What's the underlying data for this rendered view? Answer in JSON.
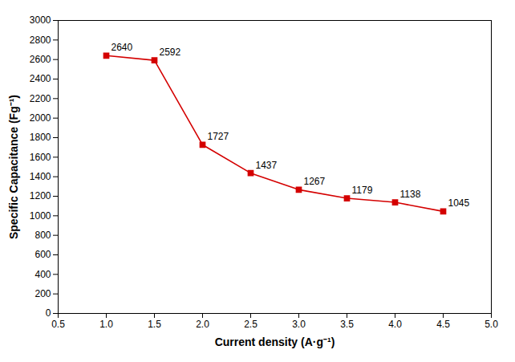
{
  "chart_data": {
    "type": "line",
    "xlabel": "Current density (A·g⁻¹)",
    "ylabel": "Specific Capacitance (Fg⁻¹)",
    "x": [
      1.0,
      1.5,
      2.0,
      2.5,
      3.0,
      3.5,
      4.0,
      4.5
    ],
    "values": [
      2640,
      2592,
      1727,
      1437,
      1267,
      1179,
      1138,
      1045
    ],
    "color": "#d40000",
    "marker": "square",
    "data_labels": true,
    "grid": false,
    "xlim": [
      0.5,
      5.0
    ],
    "ylim": [
      0,
      3000
    ],
    "xticks": [
      0.5,
      {
        "value": 1,
        "label": "1.0"
      },
      1.5,
      {
        "value": 2,
        "label": "2.0"
      },
      2.5,
      {
        "value": 3,
        "label": "3.0"
      },
      3.5,
      {
        "value": 4,
        "label": "4.0"
      },
      4.5,
      {
        "value": 5,
        "label": "5.0"
      }
    ],
    "yticks": [
      0,
      200,
      400,
      600,
      800,
      1000,
      1200,
      1400,
      1600,
      1800,
      2000,
      2200,
      2400,
      2600,
      2800,
      3000
    ]
  }
}
